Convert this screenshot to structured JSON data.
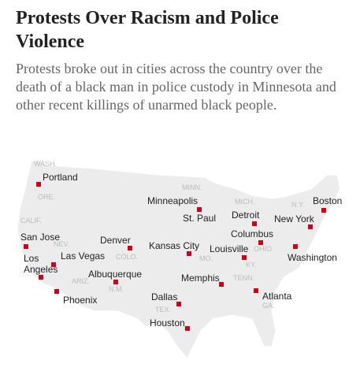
{
  "header": {
    "title": "Protests Over Racism and Police Violence",
    "description": "Protests broke out in cities across the country over the death of a black man in police custody in Minnesota and other recent killings of unarmed black people."
  },
  "map": {
    "states": [
      "WASH.",
      "ORE.",
      "CALIF.",
      "NEV.",
      "ARIZ.",
      "COLO.",
      "N.M.",
      "MINN.",
      "MICH.",
      "N.Y.",
      "OHIO",
      "MO.",
      "KY.",
      "TENN.",
      "TEX.",
      "GA."
    ],
    "cities": [
      "Portland",
      "San Jose",
      "Los Angeles",
      "Las Vegas",
      "Phoenix",
      "Denver",
      "Albuquerque",
      "Minneapolis",
      "St. Paul",
      "Kansas City",
      "Dallas",
      "Houston",
      "Memphis",
      "Detroit",
      "Columbus",
      "Louisville",
      "Atlanta",
      "New York",
      "Boston",
      "Washington"
    ]
  }
}
